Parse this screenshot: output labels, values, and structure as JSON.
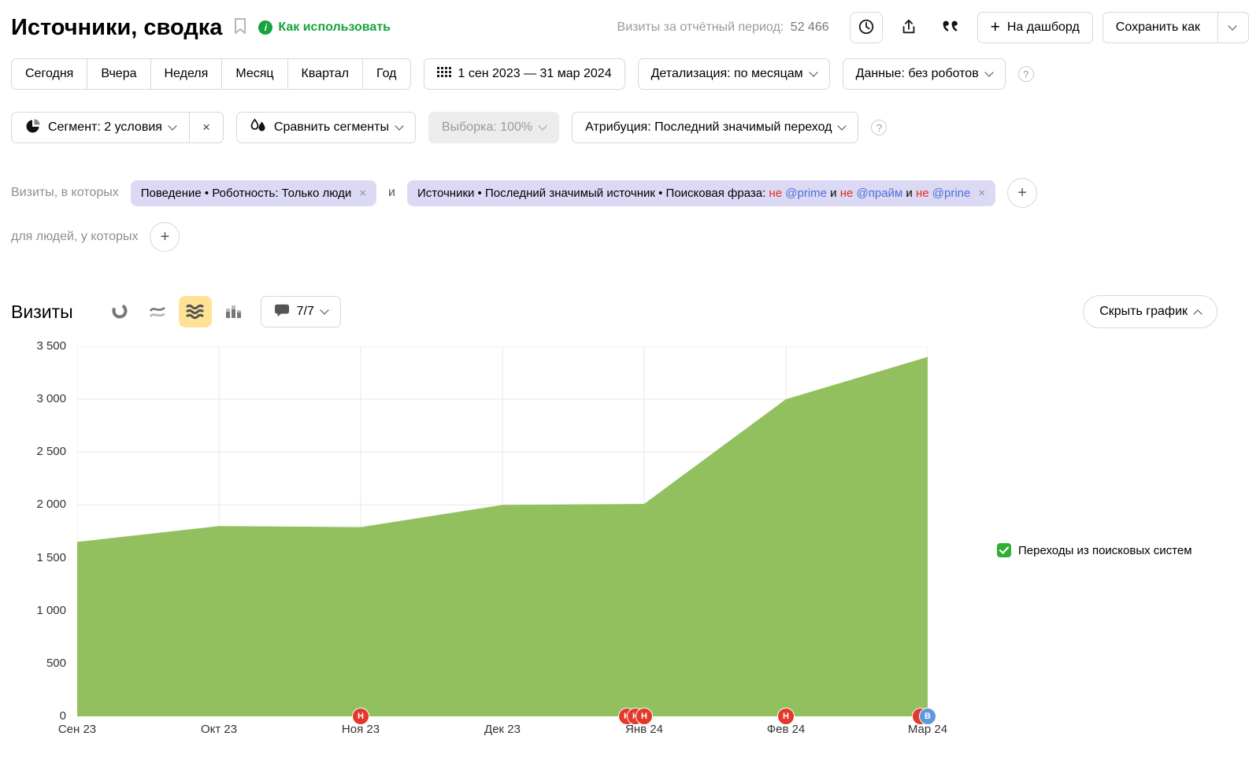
{
  "icons": {
    "close": "×",
    "plus": "+",
    "question": "?",
    "info": "i"
  },
  "header": {
    "title": "Источники, сводка",
    "how_to_use": "Как использовать",
    "visits_period_label": "Визиты за отчётный период:",
    "visits_period_value": "52 466",
    "to_dashboard_label": "На дашборд",
    "save_as_label": "Сохранить как"
  },
  "period_tabs": [
    "Сегодня",
    "Вчера",
    "Неделя",
    "Месяц",
    "Квартал",
    "Год"
  ],
  "toolbar": {
    "date_range": "1 сен 2023 — 31 мар 2024",
    "detalization_label": "Детализация: по месяцам",
    "data_label": "Данные: без роботов"
  },
  "segment_bar": {
    "segment_label": "Сегмент: 2 условия",
    "compare_label": "Сравнить сегменты",
    "sampling_label": "Выборка: 100%",
    "attribution_label": "Атрибуция: Последний значимый переход"
  },
  "filters": {
    "visits_in_which": "Визиты, в которых",
    "and_connector": "и",
    "for_people": "для людей, у которых",
    "chip_behavior": "Поведение • Роботность: Только люди",
    "chip_source_parts": [
      {
        "style": "default",
        "text": "Источники • Последний значимый источник • Поисковая фраза: "
      },
      {
        "style": "red",
        "text": "не "
      },
      {
        "style": "blue",
        "text": "@prime"
      },
      {
        "style": "default",
        "text": " и "
      },
      {
        "style": "red",
        "text": "не "
      },
      {
        "style": "blue",
        "text": "@прайм"
      },
      {
        "style": "default",
        "text": " и "
      },
      {
        "style": "red",
        "text": "не "
      },
      {
        "style": "blue",
        "text": "@prine"
      }
    ]
  },
  "chart_header": {
    "title": "Визиты",
    "annotations_count": "7/7",
    "hide_chart_label": "Скрыть график"
  },
  "legend": {
    "label": "Переходы из поисковых систем",
    "checkbox_color": "#2fae2f"
  },
  "chart_data": {
    "type": "area",
    "title": "Визиты",
    "categories": [
      "Сен 23",
      "Окт 23",
      "Ноя 23",
      "Дек 23",
      "Янв 24",
      "Фев 24",
      "Мар 24"
    ],
    "series": [
      {
        "name": "Переходы из поисковых систем",
        "values": [
          1650,
          1800,
          1790,
          2000,
          2010,
          3000,
          3400
        ]
      }
    ],
    "ylim": [
      0,
      3500
    ],
    "yticks": [
      0,
      500,
      1000,
      1500,
      2000,
      2500,
      3000,
      3500
    ],
    "ytick_labels": [
      "0",
      "500",
      "1 000",
      "1 500",
      "2 000",
      "2 500",
      "3 000",
      "3 500"
    ],
    "fill_color": "#92c05e",
    "grid": true,
    "legend_position": "right",
    "annotations": [
      {
        "category_index": 2,
        "letter": "Н",
        "color": "#e2392b",
        "count": 1
      },
      {
        "category_index": 4,
        "letter": "Н",
        "color": "#e2392b",
        "count": 3
      },
      {
        "category_index": 5,
        "letter": "Н",
        "color": "#e2392b",
        "count": 1
      },
      {
        "category_index": 6,
        "letter": "В",
        "color": "#5f97dd",
        "count": 1,
        "behind_color": "#e2392b"
      }
    ]
  }
}
